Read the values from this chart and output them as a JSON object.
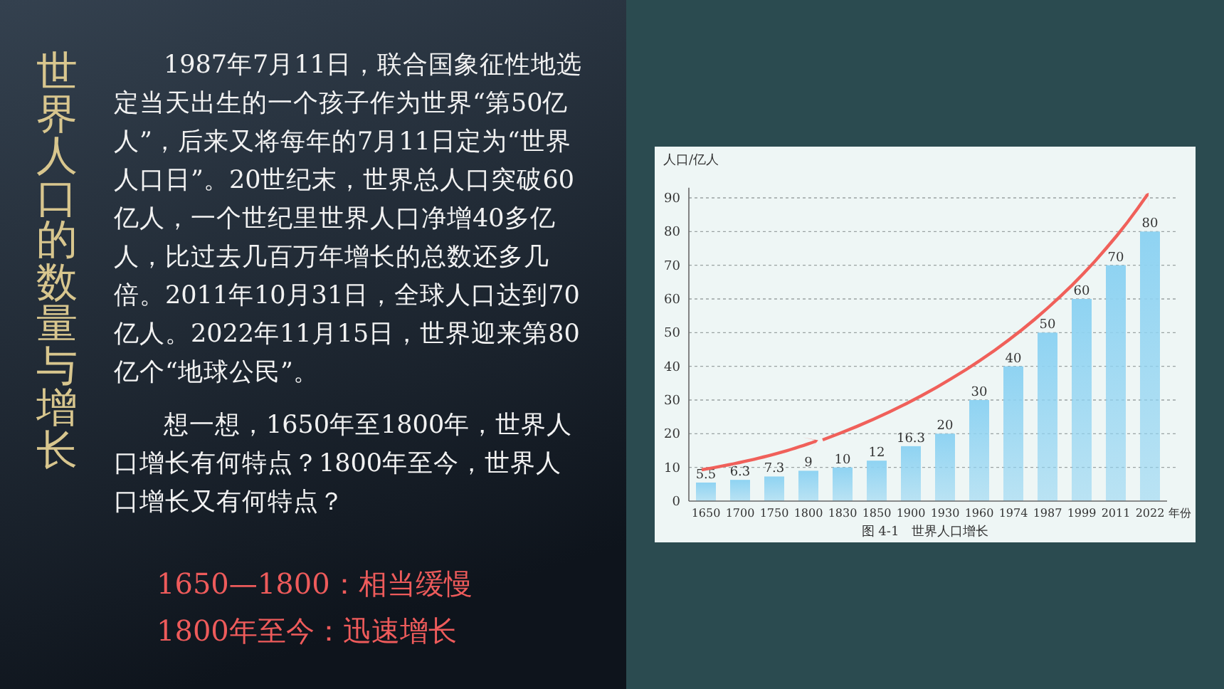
{
  "chart_data": {
    "type": "bar",
    "title": "世界人口的数量与增长",
    "annotations": [
      "1987年7月11日，联合国象征性地选定当天出生的一个孩子作为世界“第50亿人”，后来又将每年的7月11日定为“世界人口日”。20世纪末，世界总人口突破60亿人，一个世纪里世界人口净增40多亿人，比过去几百万年增长的总数还多几倍。2011年10月31日，全球人口达到70亿人。2022年11月15日，世界迎来第80亿个“地球公民”。",
      "想一想，1650年至1800年，世界人口增长有何特点？1800年至今，世界人口增长又有何特点？",
      "1650—1800：相当缓慢",
      "1800年至今：迅速增长",
      "图 4-1　世界人口增长"
    ],
    "xlabel": "年份",
    "ylabel": "人口/亿人",
    "categories": [
      "1650",
      "1700",
      "1750",
      "1800",
      "1830",
      "1850",
      "1900",
      "1930",
      "1960",
      "1974",
      "1987",
      "1999",
      "2011",
      "2022"
    ],
    "values": [
      5.5,
      6.3,
      7.3,
      9,
      10,
      12,
      16.3,
      20,
      30,
      40,
      50,
      60,
      70,
      80
    ],
    "color": "#8fd3f2",
    "ylim": [
      0,
      93
    ],
    "yticks": [
      0,
      10,
      20,
      30,
      40,
      50,
      60,
      70,
      80,
      90
    ],
    "grid": "y",
    "data_labels": true
  }
}
